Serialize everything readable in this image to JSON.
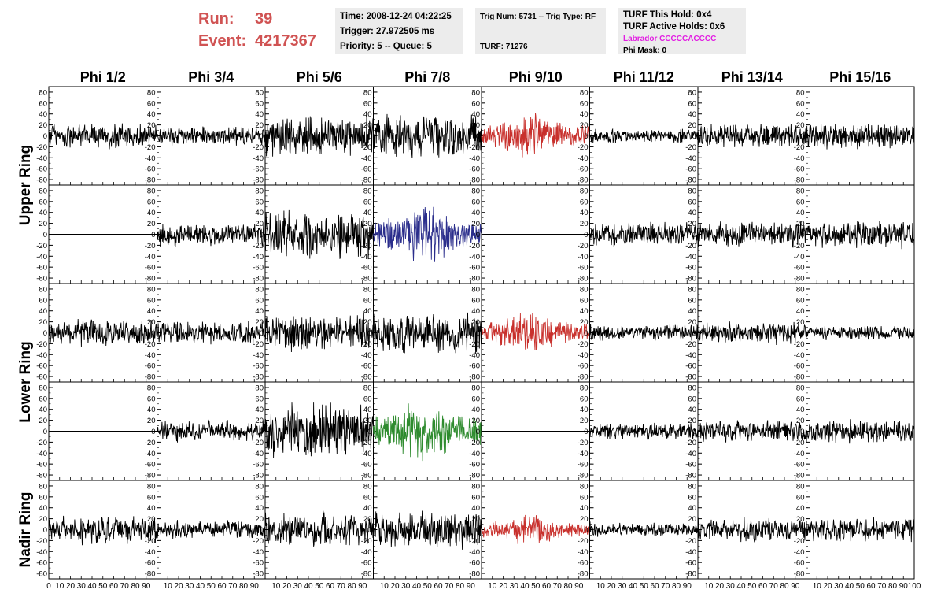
{
  "header": {
    "run_label": "Run:",
    "run_value": "39",
    "event_label": "Event:",
    "event_value": "4217367",
    "time": "Time: 2008-12-24 04:22:25",
    "trigger": "Trigger: 27.972505 ms",
    "priority": "Priority: 5 -- Queue: 5",
    "trig_num": "Trig Num: 5731 -- Trig Type: RF",
    "turf": "TURF: 71276",
    "turf_this_hold": "TURF This Hold: 0x4",
    "turf_active_holds": "TURF Active Holds: 0x6",
    "labrador": "Labrador CCCCCACCCC",
    "phi_mask": "Phi Mask: 0"
  },
  "colors": {
    "header_red": "#d05353",
    "panel_bg": "#ececec",
    "labrador_magenta": "#e21ee2",
    "trace_default": "#000000",
    "trace_red": "#c8302c",
    "trace_blue": "#2b2e8c",
    "trace_green": "#2e8b2e"
  },
  "chart_data": {
    "type": "line",
    "description_units": "waveform amplitude vs sample time",
    "columns": [
      "Phi 1/2",
      "Phi 3/4",
      "Phi 5/6",
      "Phi 7/8",
      "Phi 9/10",
      "Phi 11/12",
      "Phi 13/14",
      "Phi 15/16"
    ],
    "row_labels": [
      {
        "label": "Upper Ring",
        "rows": [
          0,
          1
        ]
      },
      {
        "label": "Lower Ring",
        "rows": [
          2,
          3
        ]
      },
      {
        "label": "Nadir Ring",
        "rows": [
          4
        ]
      }
    ],
    "xlim": [
      0,
      100
    ],
    "ylim": [
      -90,
      90
    ],
    "x_ticks": [
      0,
      10,
      20,
      30,
      40,
      50,
      60,
      70,
      80,
      90,
      100
    ],
    "x_tick_labels_per_panel": [
      "10",
      "20",
      "30",
      "40",
      "50",
      "60",
      "70",
      "80",
      "90"
    ],
    "first_panel_x_tick_labels": [
      "0",
      "10",
      "20",
      "30",
      "40",
      "50",
      "60",
      "70",
      "80",
      "90"
    ],
    "last_panel_x_tick_labels": [
      "10",
      "20",
      "30",
      "40",
      "50",
      "60",
      "70",
      "80",
      "90",
      "100"
    ],
    "y_ticks": [
      -80,
      -60,
      -40,
      -20,
      0,
      20,
      40,
      60,
      80
    ],
    "y_tick_labels": [
      "-80",
      "-60",
      "-40",
      "-20",
      "0",
      "20",
      "40",
      "60",
      "80"
    ],
    "grid": false,
    "n_samples": 260,
    "panels": [
      [
        {
          "amp": 18,
          "color": "black"
        },
        {
          "amp": 13,
          "color": "black"
        },
        {
          "amp": 28,
          "color": "black"
        },
        {
          "amp": 30,
          "color": "black"
        },
        {
          "amp": 22,
          "color": "red"
        },
        {
          "amp": 10,
          "color": "black"
        },
        {
          "amp": 17,
          "color": "black"
        },
        {
          "amp": 18,
          "color": "black"
        }
      ],
      [
        {
          "amp": 0,
          "color": "black",
          "flat": true
        },
        {
          "amp": 16,
          "color": "black"
        },
        {
          "amp": 32,
          "color": "black"
        },
        {
          "amp": 30,
          "color": "blue"
        },
        {
          "amp": 0,
          "color": "black",
          "flat": true
        },
        {
          "amp": 16,
          "color": "black"
        },
        {
          "amp": 18,
          "color": "black"
        },
        {
          "amp": 20,
          "color": "black"
        }
      ],
      [
        {
          "amp": 18,
          "color": "black"
        },
        {
          "amp": 15,
          "color": "black"
        },
        {
          "amp": 24,
          "color": "black"
        },
        {
          "amp": 28,
          "color": "black"
        },
        {
          "amp": 20,
          "color": "red"
        },
        {
          "amp": 12,
          "color": "black"
        },
        {
          "amp": 15,
          "color": "black"
        },
        {
          "amp": 10,
          "color": "black"
        }
      ],
      [
        {
          "amp": 0,
          "color": "black",
          "flat": true
        },
        {
          "amp": 15,
          "color": "black"
        },
        {
          "amp": 36,
          "color": "black"
        },
        {
          "amp": 30,
          "color": "green"
        },
        {
          "amp": 0,
          "color": "black",
          "flat": true
        },
        {
          "amp": 12,
          "color": "black"
        },
        {
          "amp": 14,
          "color": "black"
        },
        {
          "amp": 16,
          "color": "black"
        }
      ],
      [
        {
          "amp": 20,
          "color": "black"
        },
        {
          "amp": 12,
          "color": "black"
        },
        {
          "amp": 24,
          "color": "black"
        },
        {
          "amp": 26,
          "color": "black"
        },
        {
          "amp": 16,
          "color": "red"
        },
        {
          "amp": 10,
          "color": "black"
        },
        {
          "amp": 16,
          "color": "black"
        },
        {
          "amp": 16,
          "color": "black"
        }
      ]
    ]
  }
}
